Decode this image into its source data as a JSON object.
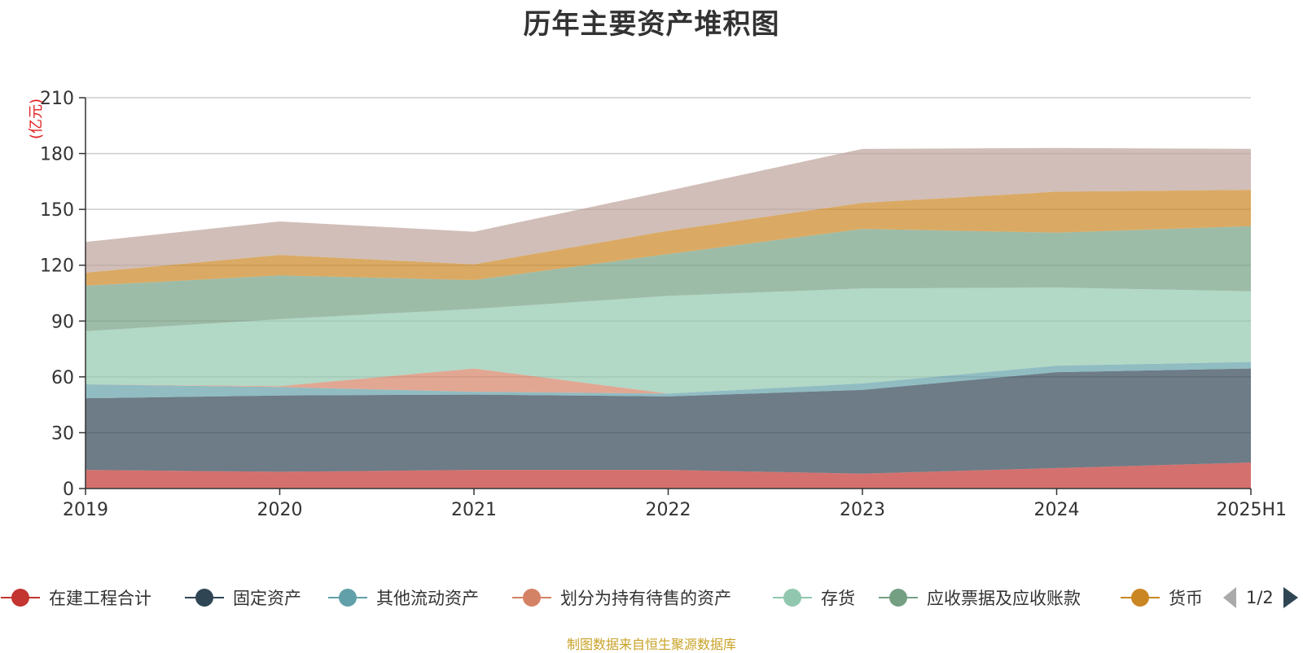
{
  "chart_data": {
    "type": "area",
    "stacked": true,
    "title": "历年主要资产堆积图",
    "ylabel": "(亿元)",
    "xlabel": "",
    "ylim": [
      0,
      210
    ],
    "yticks": [
      "0",
      "30",
      "60",
      "90",
      "120",
      "150",
      "180",
      "210"
    ],
    "categories": [
      "2019",
      "2020",
      "2021",
      "2022",
      "2023",
      "2024",
      "2025H1"
    ],
    "grid": true,
    "legend_position": "bottom",
    "series": [
      {
        "name": "在建工程合计",
        "color": "#c23531",
        "values": [
          10,
          9,
          10,
          10,
          8,
          11,
          14
        ]
      },
      {
        "name": "固定资产",
        "color": "#2f4554",
        "values": [
          38.5,
          41,
          40.5,
          39.5,
          45,
          51.5,
          50.5
        ]
      },
      {
        "name": "其他流动资产",
        "color": "#61a0a8",
        "values": [
          7.5,
          4.5,
          1.5,
          1.5,
          3.5,
          3.5,
          3.5
        ]
      },
      {
        "name": "划分为持有待售的资产",
        "color": "#d48265",
        "values": [
          0,
          0.5,
          12.5,
          0,
          0,
          0,
          0
        ]
      },
      {
        "name": "存货",
        "color": "#91c7ae",
        "values": [
          28.5,
          36,
          32,
          52.5,
          51,
          42,
          38
        ]
      },
      {
        "name": "应收票据及应收账款",
        "color": "#749f83",
        "values": [
          24.5,
          23.5,
          15.5,
          22.5,
          32,
          29.5,
          35
        ]
      },
      {
        "name": "货币",
        "color": "#ca8622",
        "values": [
          7,
          11,
          8.5,
          12.5,
          14,
          22,
          19.5
        ]
      },
      {
        "name": "",
        "color": "#bda29a",
        "values": [
          16.5,
          18,
          17.5,
          21.5,
          29,
          23.5,
          22
        ]
      }
    ]
  },
  "pager": {
    "text": "1/2",
    "prev_icon": "triangle-left-icon",
    "next_icon": "triangle-right-icon"
  },
  "source": "制图数据来自恒生聚源数据库"
}
